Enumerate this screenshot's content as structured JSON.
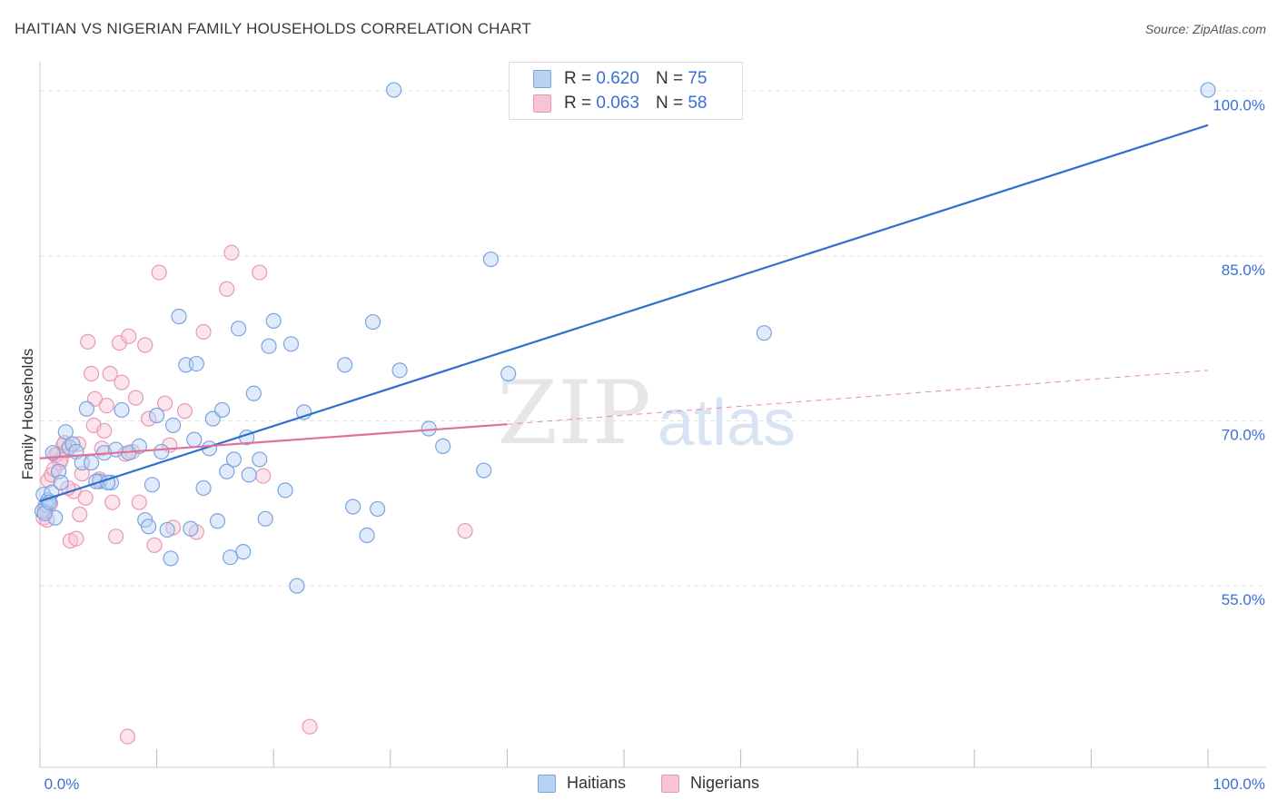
{
  "title": "HAITIAN VS NIGERIAN FAMILY HOUSEHOLDS CORRELATION CHART",
  "source": "Source: ZipAtlas.com",
  "watermark": {
    "zip": "ZIP",
    "atlas": "atlas"
  },
  "colors": {
    "haitians_fill": "#b9d2f3",
    "haitians_stroke": "#7aa3e0",
    "haitians_line": "#2f6fd0",
    "nigerians_fill": "#f7c4d4",
    "nigerians_stroke": "#e89ab3",
    "nigerians_line": "#e0709a",
    "axis_label": "#3a6fd8",
    "grid": "#e4e4e4"
  },
  "legend_top": {
    "rows": [
      {
        "r_label": "R =",
        "r_value": "0.620",
        "n_label": "N =",
        "n_value": "75",
        "series": "haitians"
      },
      {
        "r_label": "R =",
        "r_value": "0.063",
        "n_label": "N =",
        "n_value": "58",
        "series": "nigerians"
      }
    ]
  },
  "legend_bottom": {
    "haitians": "Haitians",
    "nigerians": "Nigerians"
  },
  "chart_data": {
    "type": "scatter",
    "title": "HAITIAN VS NIGERIAN FAMILY HOUSEHOLDS CORRELATION CHART",
    "xlabel": "",
    "ylabel": "Family Households",
    "xlim": [
      0,
      100
    ],
    "ylim": [
      38.5,
      102.5
    ],
    "x_tick_labels": {
      "left": "0.0%",
      "right": "100.0%"
    },
    "y_ticks": [
      {
        "value": 55,
        "label": "55.0%"
      },
      {
        "value": 70,
        "label": "70.0%"
      },
      {
        "value": 85,
        "label": "85.0%"
      },
      {
        "value": 100,
        "label": "100.0%"
      }
    ],
    "grid": true,
    "series": [
      {
        "name": "Haitians",
        "R": 0.62,
        "N": 75,
        "trend": {
          "x0": 0,
          "y0": 62.7,
          "x1": 100,
          "y1": 96.9,
          "dashed_extension": false
        },
        "points": [
          [
            0.3,
            63.3
          ],
          [
            0.5,
            62.4
          ],
          [
            0.7,
            62.8
          ],
          [
            1.0,
            63.5
          ],
          [
            1.3,
            61.2
          ],
          [
            1.6,
            65.4
          ],
          [
            1.8,
            64.4
          ],
          [
            2.2,
            69.0
          ],
          [
            2.5,
            67.6
          ],
          [
            2.8,
            67.9
          ],
          [
            3.1,
            67.2
          ],
          [
            3.6,
            66.2
          ],
          [
            4.0,
            71.1
          ],
          [
            4.4,
            66.2
          ],
          [
            5.1,
            64.5
          ],
          [
            5.5,
            67.1
          ],
          [
            6.1,
            64.4
          ],
          [
            6.5,
            67.4
          ],
          [
            7.0,
            71.0
          ],
          [
            7.6,
            67.1
          ],
          [
            8.5,
            67.7
          ],
          [
            9.0,
            61.0
          ],
          [
            9.3,
            60.4
          ],
          [
            9.6,
            64.2
          ],
          [
            10.0,
            70.5
          ],
          [
            10.4,
            67.2
          ],
          [
            10.9,
            60.1
          ],
          [
            11.2,
            57.5
          ],
          [
            11.4,
            69.6
          ],
          [
            11.9,
            79.5
          ],
          [
            12.5,
            75.1
          ],
          [
            12.9,
            60.2
          ],
          [
            13.2,
            68.3
          ],
          [
            13.4,
            75.2
          ],
          [
            14.0,
            63.9
          ],
          [
            14.5,
            67.5
          ],
          [
            14.8,
            70.2
          ],
          [
            15.2,
            60.9
          ],
          [
            15.6,
            71.0
          ],
          [
            16.0,
            65.4
          ],
          [
            16.3,
            57.6
          ],
          [
            16.6,
            66.5
          ],
          [
            17.0,
            78.4
          ],
          [
            17.4,
            58.1
          ],
          [
            17.7,
            68.5
          ],
          [
            17.9,
            65.1
          ],
          [
            18.3,
            72.5
          ],
          [
            18.8,
            66.5
          ],
          [
            19.3,
            61.1
          ],
          [
            19.6,
            76.8
          ],
          [
            20.0,
            79.1
          ],
          [
            21.0,
            63.7
          ],
          [
            21.5,
            77.0
          ],
          [
            22.0,
            55.0
          ],
          [
            22.6,
            70.8
          ],
          [
            26.1,
            75.1
          ],
          [
            26.8,
            62.2
          ],
          [
            28.0,
            59.6
          ],
          [
            28.5,
            79.0
          ],
          [
            28.9,
            62.0
          ],
          [
            30.3,
            100.1
          ],
          [
            30.8,
            74.6
          ],
          [
            33.3,
            69.3
          ],
          [
            34.5,
            67.7
          ],
          [
            38.0,
            65.5
          ],
          [
            38.6,
            84.7
          ],
          [
            40.1,
            74.3
          ],
          [
            62.0,
            78.0
          ],
          [
            100.0,
            100.1
          ],
          [
            0.2,
            61.8
          ],
          [
            0.4,
            61.6
          ],
          [
            0.8,
            62.6
          ],
          [
            4.8,
            64.5
          ],
          [
            1.1,
            67.1
          ],
          [
            5.8,
            64.4
          ]
        ]
      },
      {
        "name": "Nigerians",
        "R": 0.063,
        "N": 58,
        "trend": {
          "x0": 0,
          "y0": 66.6,
          "x1": 40,
          "y1": 69.7,
          "dashed_extension": true,
          "dash_x1": 100,
          "dash_y1": 74.6
        },
        "points": [
          [
            0.3,
            61.2
          ],
          [
            0.5,
            61.8
          ],
          [
            0.7,
            64.6
          ],
          [
            1.0,
            65.1
          ],
          [
            1.3,
            66.9
          ],
          [
            1.5,
            67.0
          ],
          [
            1.7,
            66.2
          ],
          [
            2.0,
            67.8
          ],
          [
            2.3,
            67.3
          ],
          [
            2.6,
            59.1
          ],
          [
            2.9,
            63.6
          ],
          [
            3.1,
            59.3
          ],
          [
            3.4,
            61.5
          ],
          [
            3.6,
            65.2
          ],
          [
            3.9,
            63.0
          ],
          [
            4.1,
            77.2
          ],
          [
            4.4,
            74.3
          ],
          [
            4.7,
            72.0
          ],
          [
            5.1,
            64.7
          ],
          [
            5.3,
            67.5
          ],
          [
            5.7,
            71.4
          ],
          [
            6.0,
            74.3
          ],
          [
            6.2,
            62.6
          ],
          [
            6.5,
            59.5
          ],
          [
            6.8,
            77.1
          ],
          [
            7.0,
            73.5
          ],
          [
            7.3,
            67.0
          ],
          [
            7.6,
            77.7
          ],
          [
            7.9,
            67.2
          ],
          [
            8.2,
            72.1
          ],
          [
            8.5,
            62.6
          ],
          [
            9.0,
            76.9
          ],
          [
            9.3,
            70.2
          ],
          [
            9.8,
            58.7
          ],
          [
            10.2,
            83.5
          ],
          [
            10.7,
            71.6
          ],
          [
            11.1,
            67.8
          ],
          [
            11.4,
            60.3
          ],
          [
            12.4,
            70.9
          ],
          [
            13.4,
            59.9
          ],
          [
            14.0,
            78.1
          ],
          [
            16.0,
            82.0
          ],
          [
            16.4,
            85.3
          ],
          [
            18.8,
            83.5
          ],
          [
            19.1,
            65.0
          ],
          [
            23.1,
            42.2
          ],
          [
            36.4,
            60.0
          ],
          [
            7.5,
            41.3
          ],
          [
            0.4,
            62.0
          ],
          [
            0.9,
            62.5
          ],
          [
            1.8,
            66.5
          ],
          [
            2.4,
            63.9
          ],
          [
            3.3,
            67.9
          ],
          [
            4.6,
            69.6
          ],
          [
            5.5,
            69.1
          ],
          [
            2.1,
            68.0
          ],
          [
            0.6,
            61.0
          ],
          [
            1.2,
            65.6
          ]
        ]
      }
    ]
  }
}
